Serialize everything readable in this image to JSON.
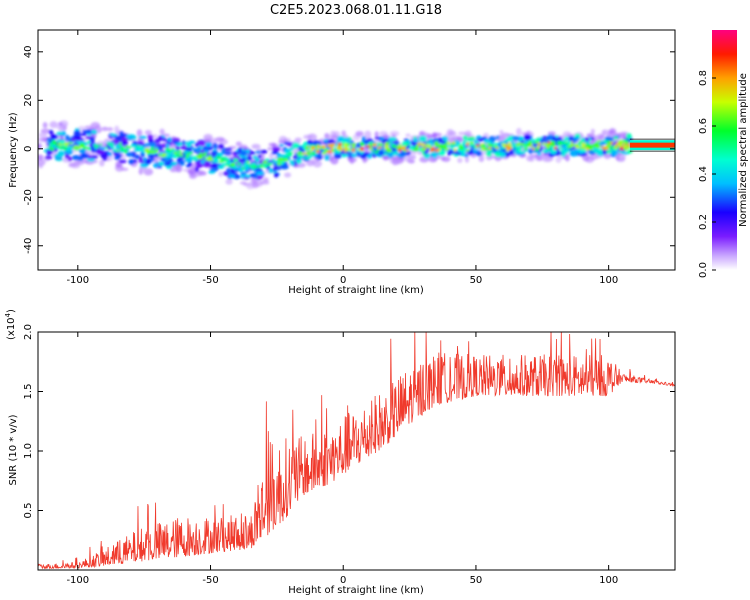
{
  "title": "C2E5.2023.068.01.11.G18",
  "chart_data": [
    {
      "type": "heatmap",
      "xlabel": "Height of straight line (km)",
      "ylabel": "Frequency (Hz)",
      "xlim": [
        -115,
        125
      ],
      "ylim": [
        -50,
        49
      ],
      "x_ticks": [
        -100,
        -50,
        0,
        50,
        100
      ],
      "y_ticks": [
        -40,
        -20,
        0,
        20,
        40
      ],
      "colorbar": {
        "label": "Normalized spectral amplitude",
        "range": [
          0.0,
          1.0
        ],
        "ticks": [
          "0.0",
          "0.2",
          "0.4",
          "0.6",
          "0.8"
        ]
      },
      "band": {
        "x_start": -115,
        "x_end": 125,
        "center_profile": [
          {
            "x": -110,
            "y": 1.5
          },
          {
            "x": -90,
            "y": 1.5
          },
          {
            "x": -75,
            "y": -1
          },
          {
            "x": -60,
            "y": -2
          },
          {
            "x": -45,
            "y": -5
          },
          {
            "x": -35,
            "y": -7
          },
          {
            "x": -25,
            "y": -5
          },
          {
            "x": -15,
            "y": -1
          },
          {
            "x": 0,
            "y": 0.5
          },
          {
            "x": 50,
            "y": 1
          },
          {
            "x": 100,
            "y": 1.5
          },
          {
            "x": 125,
            "y": 1.5
          }
        ],
        "strong_signal_start_x": -20,
        "steady_tone_start_x": 108
      }
    },
    {
      "type": "line",
      "xlabel": "Height of straight line (km)",
      "ylabel": "SNR (10 * v/v)",
      "y_scale_label": "(x10",
      "y_scale_exponent": "4",
      "xlim": [
        -115,
        125
      ],
      "ylim": [
        0,
        20000
      ],
      "x_ticks": [
        -100,
        -50,
        0,
        50,
        100
      ],
      "y_ticks": [
        {
          "value": 5000,
          "label": "0.5"
        },
        {
          "value": 10000,
          "label": "1.0"
        },
        {
          "value": 15000,
          "label": "1.5"
        },
        {
          "value": 20000,
          "label": "2.0"
        }
      ],
      "color": "#f03a2c",
      "envelope": [
        {
          "x": -115,
          "base": 200,
          "spread": 400
        },
        {
          "x": -100,
          "base": 300,
          "spread": 500
        },
        {
          "x": -90,
          "base": 700,
          "spread": 1500
        },
        {
          "x": -75,
          "base": 1500,
          "spread": 3000
        },
        {
          "x": -60,
          "base": 2000,
          "spread": 3500
        },
        {
          "x": -45,
          "base": 2300,
          "spread": 3000
        },
        {
          "x": -35,
          "base": 2500,
          "spread": 3000
        },
        {
          "x": -28,
          "base": 5000,
          "spread": 8000
        },
        {
          "x": -22,
          "base": 6000,
          "spread": 7000
        },
        {
          "x": -15,
          "base": 7500,
          "spread": 5000
        },
        {
          "x": -5,
          "base": 8500,
          "spread": 5000
        },
        {
          "x": 5,
          "base": 10000,
          "spread": 5000
        },
        {
          "x": 15,
          "base": 11500,
          "spread": 5000
        },
        {
          "x": 25,
          "base": 13500,
          "spread": 5000
        },
        {
          "x": 35,
          "base": 15000,
          "spread": 4500
        },
        {
          "x": 50,
          "base": 15500,
          "spread": 3500
        },
        {
          "x": 75,
          "base": 15500,
          "spread": 3500
        },
        {
          "x": 100,
          "base": 15500,
          "spread": 3500
        },
        {
          "x": 105,
          "base": 16000,
          "spread": 800
        },
        {
          "x": 115,
          "base": 15800,
          "spread": 300
        },
        {
          "x": 125,
          "base": 15500,
          "spread": 200
        }
      ]
    }
  ]
}
